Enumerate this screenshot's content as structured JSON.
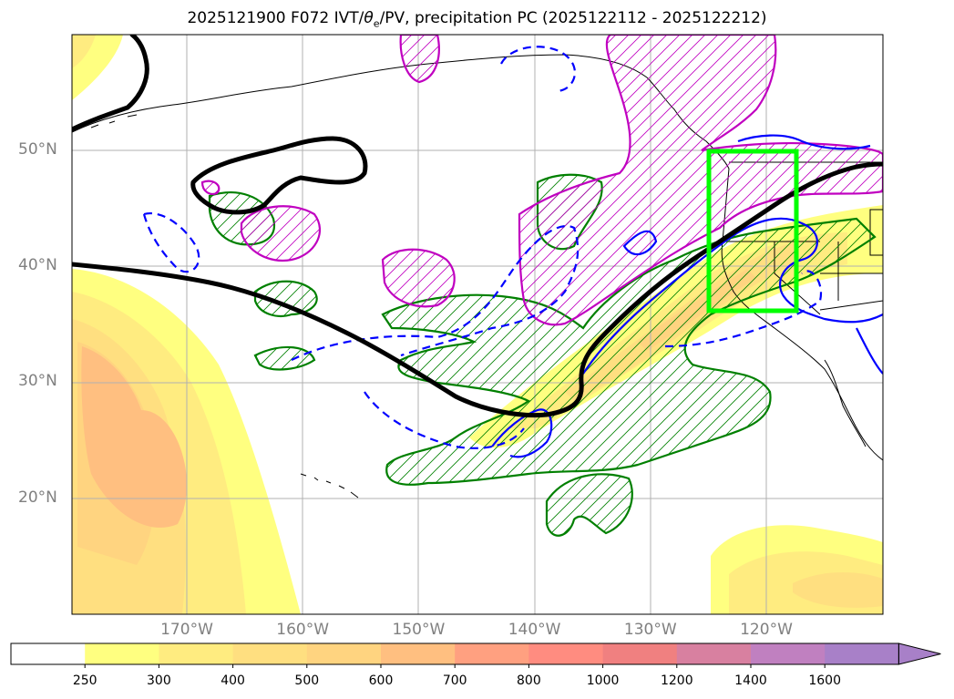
{
  "title": {
    "prefix": "2025121900 F072 IVT/",
    "theta": "θ",
    "theta_sub": "e",
    "suffix": "/PV, precipitation PC (2025122112 - 2025122212)"
  },
  "axes": {
    "lat_labels": [
      {
        "deg": 50,
        "text": "50°N"
      },
      {
        "deg": 40,
        "text": "40°N"
      },
      {
        "deg": 30,
        "text": "30°N"
      },
      {
        "deg": 20,
        "text": "20°N"
      }
    ],
    "lon_labels": [
      {
        "deg": -170,
        "text": "170°W"
      },
      {
        "deg": -160,
        "text": "160°W"
      },
      {
        "deg": -150,
        "text": "150°W"
      },
      {
        "deg": -140,
        "text": "140°W"
      },
      {
        "deg": -130,
        "text": "130°W"
      },
      {
        "deg": -120,
        "text": "120°W"
      }
    ]
  },
  "colorbar": {
    "labels": [
      "250",
      "300",
      "400",
      "500",
      "600",
      "700",
      "800",
      "1000",
      "1200",
      "1400",
      "1600"
    ],
    "colors": [
      "#ffffff",
      "#ffff80",
      "#ffec80",
      "#ffdf80",
      "#ffd480",
      "#ffbf80",
      "#ffa080",
      "#ff8c80",
      "#f08080",
      "#d880a0",
      "#c080c0",
      "#a880c8"
    ]
  },
  "legend_colors": {
    "pv_contour": "#000000",
    "theta_e_positive": "#0000ff",
    "theta_e_negative": "#0000ff",
    "precip_pc_green": "#008000",
    "precip_pc_magenta": "#c000c0",
    "target_box": "#00ff00"
  }
}
